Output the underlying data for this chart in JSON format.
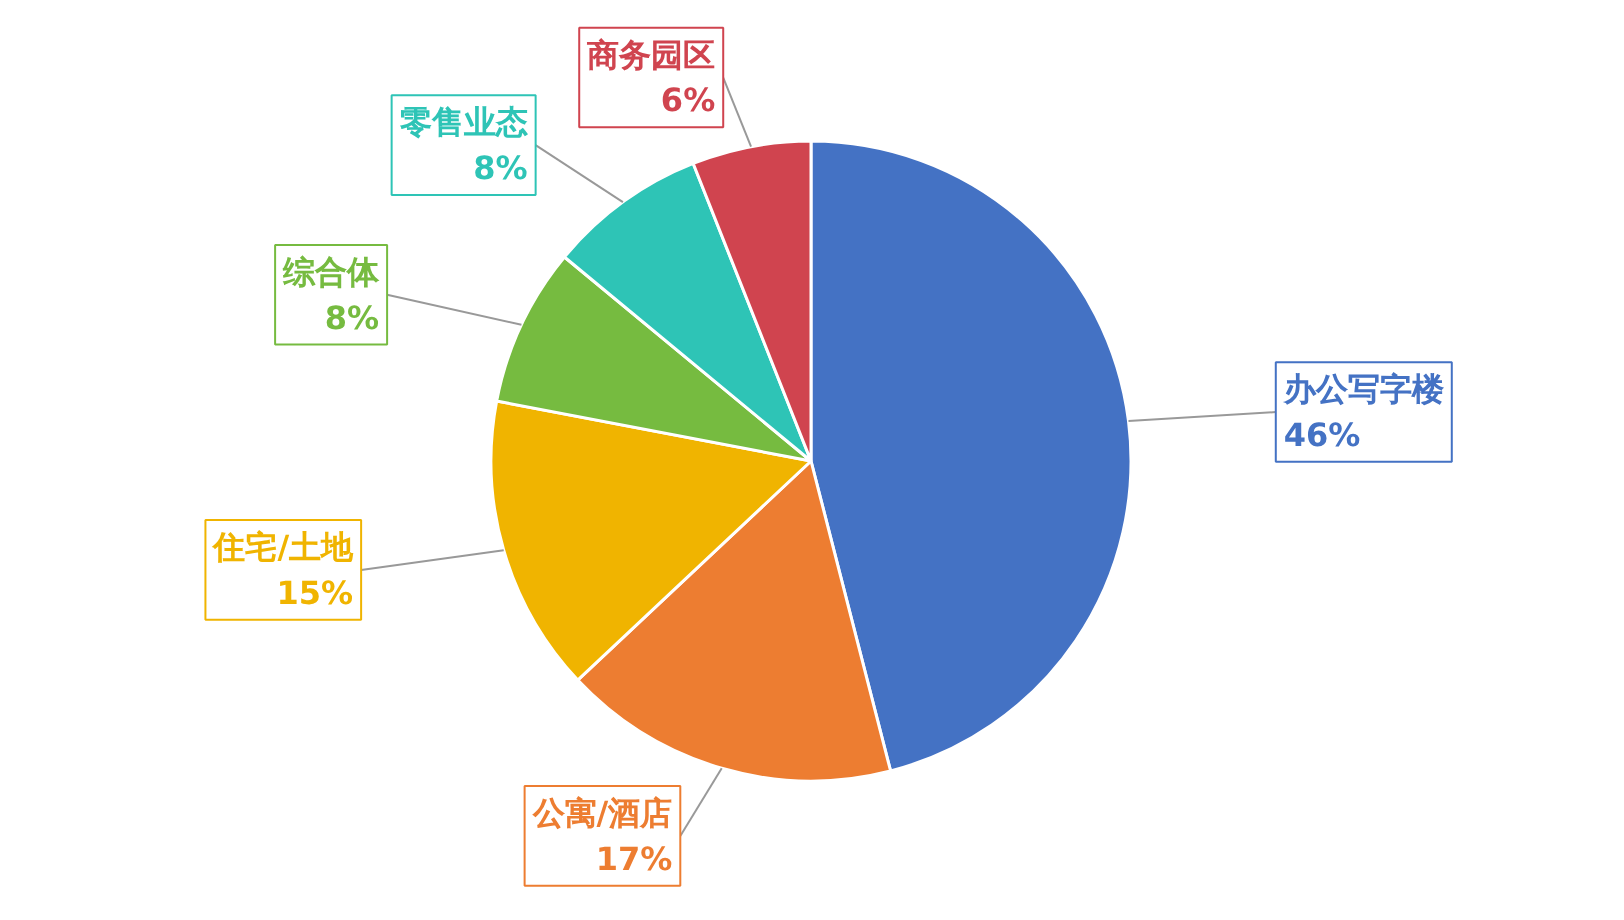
{
  "chart_data": {
    "type": "pie",
    "categories": [
      "办公写字楼",
      "公寓/酒店",
      "住宅/土地",
      "综合体",
      "零售业态",
      "商务园区"
    ],
    "values": [
      46,
      17,
      15,
      8,
      8,
      6
    ],
    "value_labels": [
      "46%",
      "17%",
      "15%",
      "8%",
      "8%",
      "6%"
    ],
    "colors": [
      "#4472c4",
      "#ed7d31",
      "#f0b400",
      "#76bb40",
      "#2ec4b6",
      "#d0444f"
    ]
  }
}
